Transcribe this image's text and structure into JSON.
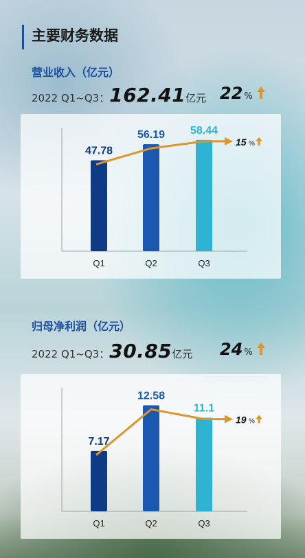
{
  "header": {
    "title": "主要财务数据"
  },
  "revenue": {
    "section_title": "营业收入（亿元）",
    "period": "2022 Q1~Q3：",
    "total": "162.41",
    "unit": "亿元",
    "growth": "22",
    "growth_unit": "%"
  },
  "profit": {
    "section_title": "归母净利润（亿元）",
    "period": "2022 Q1~Q3：",
    "total": "30.85",
    "unit": "亿元",
    "growth": "24",
    "growth_unit": "%"
  },
  "colors": {
    "q1": "#0f3a86",
    "q2": "#1b58b0",
    "q3": "#2fb3d3",
    "line": "#e0952a",
    "title_accent": "#1b4fa3"
  },
  "chart_data": [
    {
      "type": "bar",
      "categories": [
        "Q1",
        "Q2",
        "Q3"
      ],
      "values": [
        47.78,
        56.19,
        58.44
      ],
      "value_labels": [
        "47.78",
        "56.19",
        "58.44"
      ],
      "ylim": [
        0,
        62
      ],
      "trend_label": "15",
      "trend_unit": "%"
    },
    {
      "type": "bar",
      "categories": [
        "Q1",
        "Q2",
        "Q3"
      ],
      "values": [
        7.17,
        12.58,
        11.1
      ],
      "value_labels": [
        "7.17",
        "12.58",
        "11.1"
      ],
      "ylim": [
        0,
        14
      ],
      "trend_label": "19",
      "trend_unit": "%"
    }
  ]
}
